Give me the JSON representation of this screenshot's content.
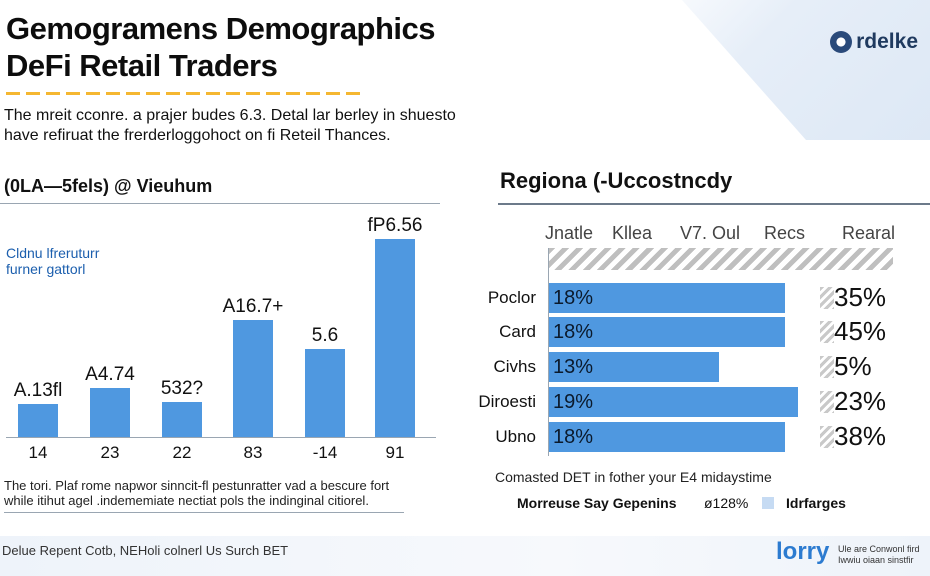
{
  "header": {
    "title_line1": "Gemogramens Demographics",
    "title_line2": "DeFi Retail Traders",
    "logo_text": "rdelke",
    "intro_line1": "The mreit cconre. a prajer budes 6.3. Detal lar berley in shuesto",
    "intro_line2": "have refiruat the frerderloggohoct on fi Reteil Thances."
  },
  "left_chart": {
    "title": "(0LA—5fels) @ Vieuhum",
    "legend_line1": "Cldnu lfreruturr",
    "legend_line2": "furner gattorl",
    "note_line1": "The tori. Plaf rome napwor sinncit-fl pestunratter vad a bescure fort",
    "note_line2": "while itihut agel .indememiate nectiat pols the indinginal citiorel."
  },
  "right_chart": {
    "title": "Regiona (-Uccostncdy",
    "column_heads": [
      "Jnatle",
      "Kllea",
      "V7. Oul",
      "Recs",
      "Rearal"
    ],
    "caption": "Comasted DET in fother your E4 midaystime",
    "legend_label": "Morreuse Say Gepenins",
    "legend_value": "ø128%",
    "legend_swatch_label": "Idrfarges"
  },
  "footer": {
    "left_text": "Delue Repent Cotb, NEHoli colnerl Us Surch BET",
    "brand": "lorry",
    "brand_sub_line1": "Ule are Conwonl fird",
    "brand_sub_line2": "Iwwiu oiaan sinstfir"
  },
  "colors": {
    "bar": "#4f98e0",
    "accent_underline": "#f5b731",
    "legend_swatch": "#c6dbf3",
    "left_legend_text": "#1c5fae"
  },
  "chart_data": [
    {
      "type": "bar",
      "title": "(0LA—5fels) @ Vieuhum",
      "categories": [
        "14",
        "23",
        "22",
        "83",
        "-14",
        "91"
      ],
      "values": [
        34,
        50,
        36,
        120,
        90,
        203
      ],
      "data_labels": [
        "A.13fl",
        "A4.74",
        "532?",
        "A16.7+",
        "5.6",
        "fP6.56"
      ],
      "ylim": [
        0,
        210
      ],
      "grid": false,
      "legend": "top-left"
    },
    {
      "type": "bar",
      "orientation": "horizontal",
      "title": "Regiona (-Uccostncdy",
      "categories": [
        "Poclor",
        "Card",
        "Civhs",
        "Diroesti",
        "Ubno"
      ],
      "values": [
        18,
        18,
        13,
        19,
        18
      ],
      "labels": [
        "18%",
        "18%",
        "13%",
        "19%",
        "18%"
      ],
      "secondary_values": [
        "35%",
        "45%",
        "5%",
        "23%",
        "38%"
      ],
      "xlim": [
        0,
        20
      ],
      "grid": false
    }
  ]
}
